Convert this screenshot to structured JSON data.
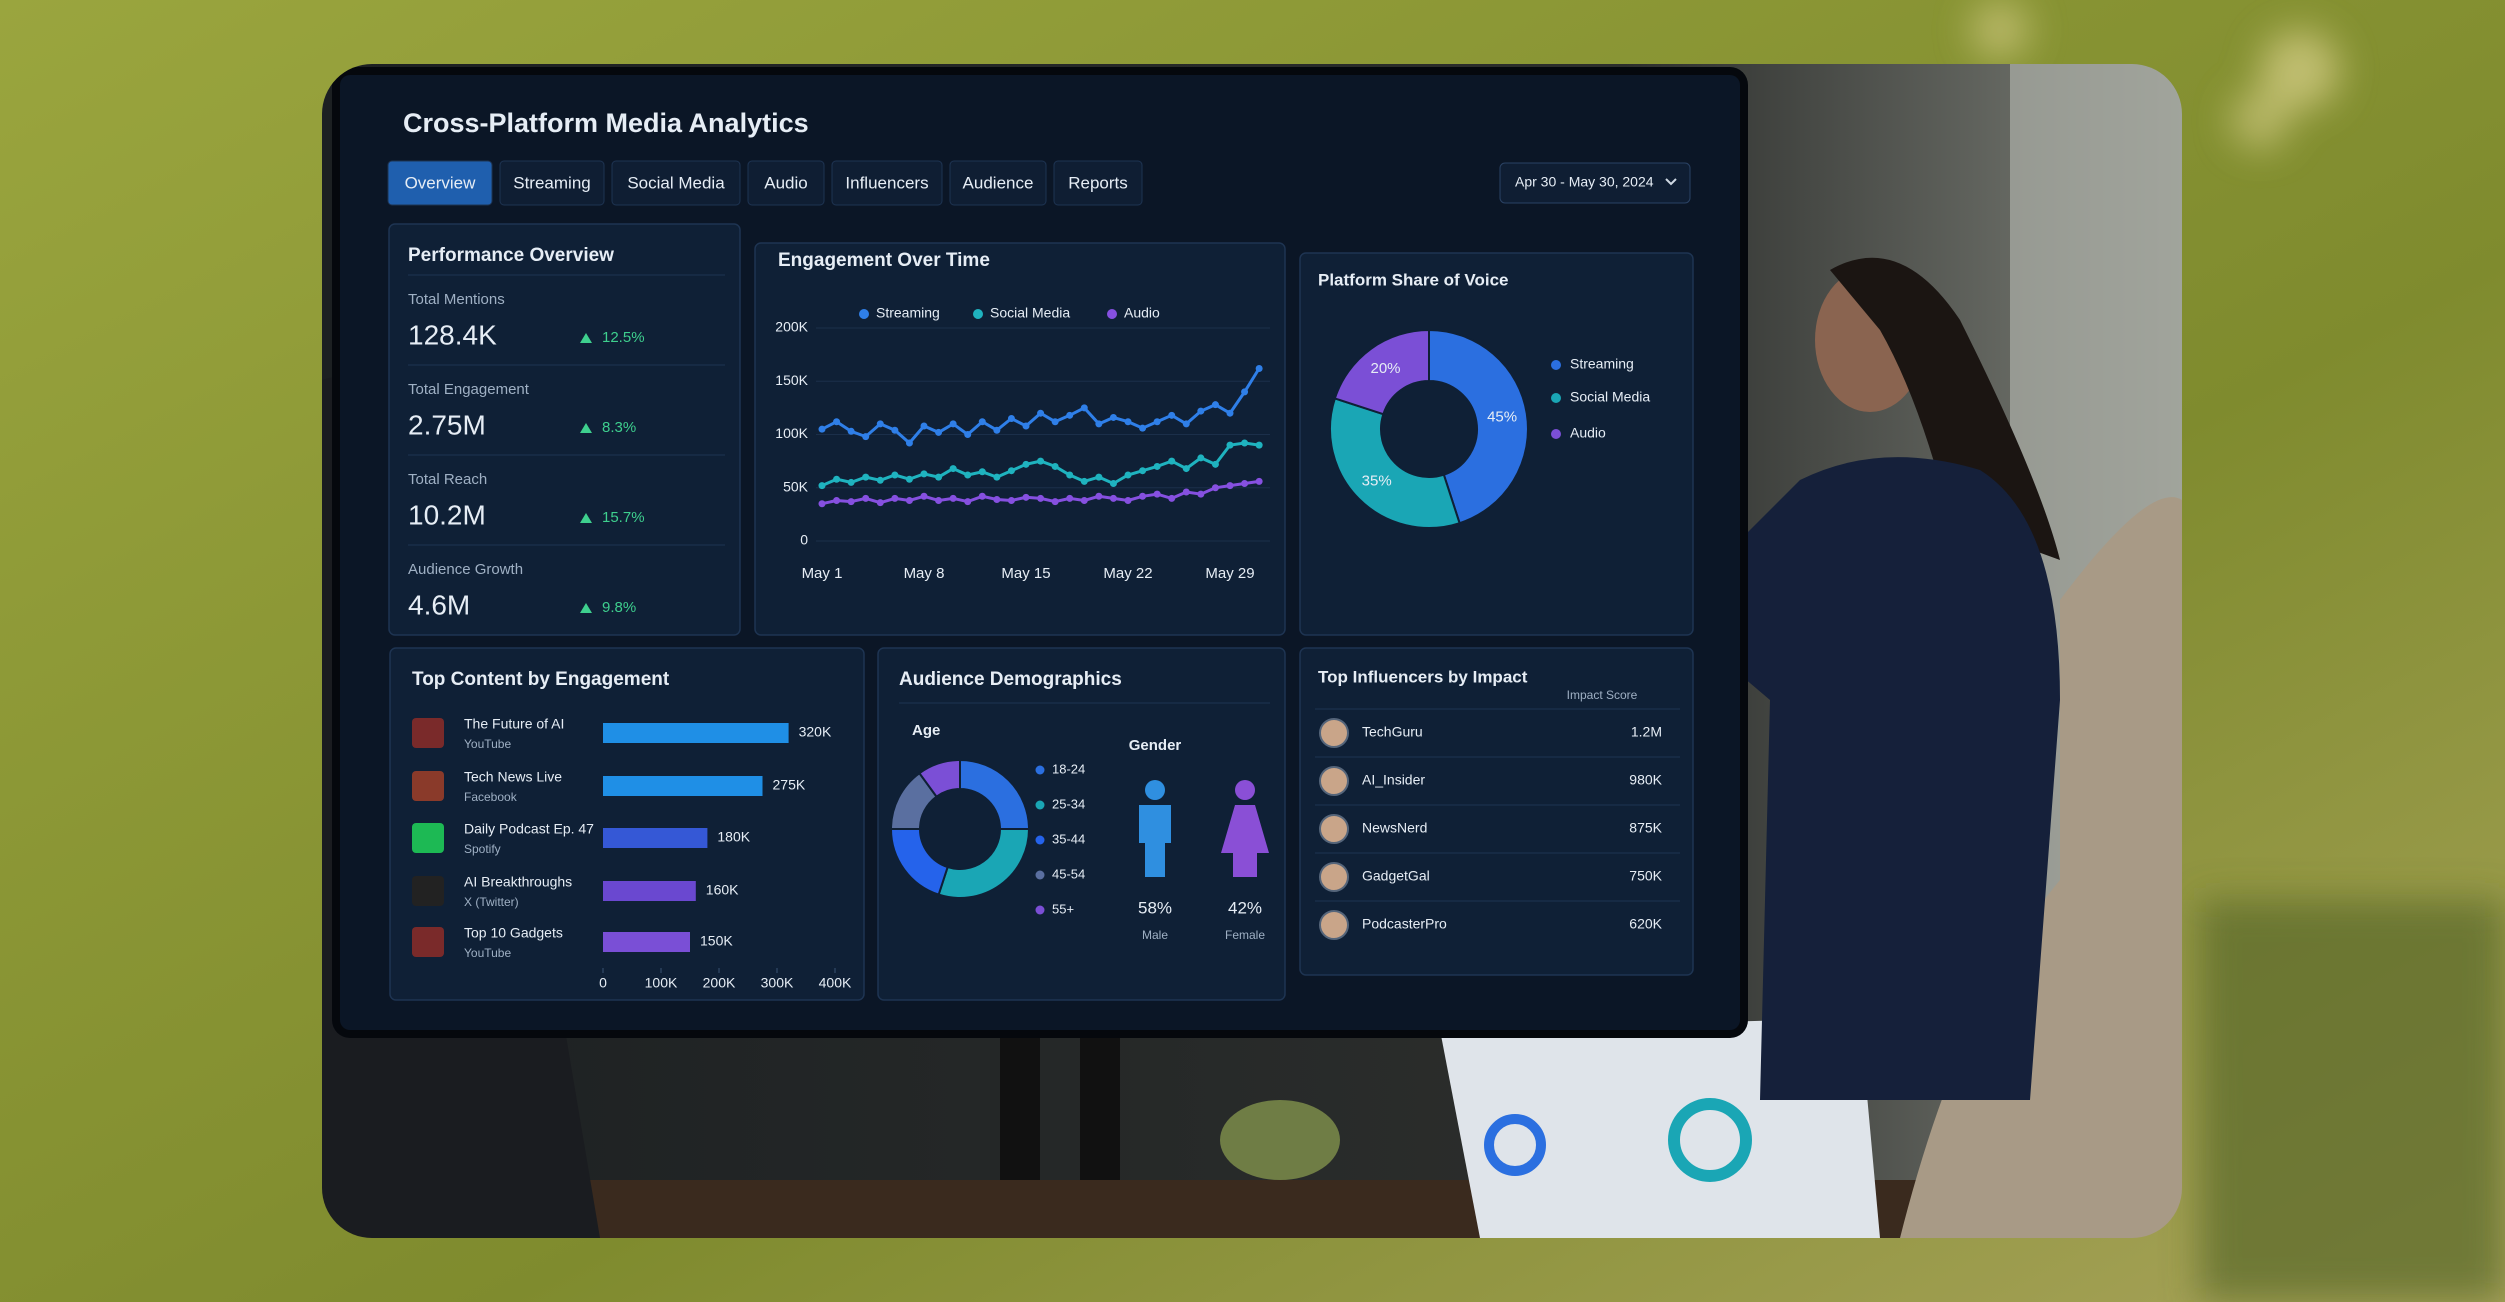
{
  "header": {
    "title": "Cross-Platform Media Analytics",
    "tabs": [
      "Overview",
      "Streaming",
      "Social Media",
      "Audio",
      "Influencers",
      "Audience",
      "Reports"
    ],
    "date_range": "Apr 30 - May 30, 2024"
  },
  "kpis": {
    "title": "Performance Overview",
    "items": [
      {
        "label": "Total Mentions",
        "value": "128.4K",
        "change": "12.5%"
      },
      {
        "label": "Total Engagement",
        "value": "2.75M",
        "change": "8.3%"
      },
      {
        "label": "Total Reach",
        "value": "10.2M",
        "change": "15.7%"
      },
      {
        "label": "Audience Growth",
        "value": "4.6M",
        "change": "9.8%"
      }
    ]
  },
  "chart_data": [
    {
      "type": "line",
      "title": "Engagement Over Time",
      "categories": [
        "May 1",
        null,
        null,
        null,
        null,
        null,
        null,
        "May 8",
        null,
        null,
        null,
        null,
        null,
        null,
        "May 15",
        null,
        null,
        null,
        null,
        null,
        null,
        "May 22",
        null,
        null,
        null,
        null,
        null,
        null,
        "May 29",
        null,
        null
      ],
      "series": [
        {
          "name": "Streaming",
          "color": "#2f7fe8",
          "values": [
            105000,
            112000,
            103000,
            98000,
            110000,
            104000,
            92000,
            108000,
            102000,
            110000,
            100000,
            112000,
            104000,
            115000,
            108000,
            120000,
            112000,
            118000,
            125000,
            110000,
            116000,
            112000,
            106000,
            112000,
            118000,
            110000,
            122000,
            128000,
            120000,
            140000,
            162000
          ]
        },
        {
          "name": "Social Media",
          "color": "#1fb3bf",
          "values": [
            52000,
            58000,
            55000,
            60000,
            57000,
            62000,
            58000,
            63000,
            60000,
            68000,
            62000,
            65000,
            60000,
            66000,
            72000,
            75000,
            70000,
            62000,
            56000,
            60000,
            54000,
            62000,
            66000,
            70000,
            75000,
            68000,
            78000,
            72000,
            90000,
            92000,
            90000
          ]
        },
        {
          "name": "Audio",
          "color": "#8650e0",
          "values": [
            35000,
            38000,
            37000,
            40000,
            36000,
            40000,
            38000,
            42000,
            38000,
            40000,
            37000,
            42000,
            39000,
            38000,
            41000,
            40000,
            37000,
            40000,
            38000,
            42000,
            40000,
            38000,
            42000,
            44000,
            40000,
            46000,
            44000,
            50000,
            52000,
            54000,
            56000
          ]
        }
      ],
      "ylim": [
        0,
        200000
      ],
      "yticks": [
        0,
        {
          "value": 50000,
          "label": "50K"
        },
        {
          "value": 100000,
          "label": "100K"
        },
        {
          "value": 150000,
          "label": "150K"
        },
        {
          "value": 200000,
          "label": "200K"
        }
      ],
      "grid": true
    },
    {
      "type": "pie",
      "title": "Platform Share of Voice",
      "categories": [
        "Streaming",
        "Social Media",
        "Audio"
      ],
      "values": [
        45,
        35,
        20
      ],
      "value_labels": [
        "45%",
        "35%",
        "20%"
      ],
      "colors": [
        "#2b6fe0",
        "#1aa6b5",
        "#7b4fd6"
      ],
      "donut": true
    },
    {
      "type": "hbar",
      "title": "Top Content by Engagement",
      "categories": [
        "The Future of AI",
        "Tech News Live",
        "Daily Podcast Ep. 47",
        "AI Breakthroughs",
        "Top 10 Gadgets"
      ],
      "platforms": [
        "YouTube",
        "Facebook",
        "Spotify",
        "X (Twitter)",
        "YouTube"
      ],
      "values": [
        320000,
        275000,
        180000,
        160000,
        150000
      ],
      "value_labels": [
        "320K",
        "275K",
        "180K",
        "160K",
        "150K"
      ],
      "colors": [
        "#1f8fe6",
        "#1f8fe6",
        "#3558d6",
        "#6a48d0",
        "#7a4fd6"
      ],
      "xlim": [
        0,
        400000
      ],
      "xticks": [
        0,
        {
          "value": 100000,
          "label": "100K"
        },
        {
          "value": 200000,
          "label": "200K"
        },
        {
          "value": 300000,
          "label": "300K"
        },
        {
          "value": 400000,
          "label": "400K"
        }
      ]
    },
    {
      "type": "pie",
      "title": "Audience Demographics",
      "label": "Age",
      "categories": [
        "18-24",
        "25-34",
        "35-44",
        "45-54",
        "55+"
      ],
      "values": [
        25,
        30,
        20,
        15,
        10
      ],
      "colors": [
        "#2b6fe0",
        "#1aa6b5",
        "#2563eb",
        "#5a6fa0",
        "#7b4fd6"
      ],
      "donut": true
    },
    {
      "type": "pictogram",
      "title": "Gender",
      "categories": [
        "Male",
        "Female"
      ],
      "values": [
        58,
        42
      ],
      "value_labels": [
        "58%",
        "42%"
      ],
      "colors": [
        "#2f8fe0",
        "#8a4fd6"
      ]
    }
  ],
  "influencers": {
    "title": "Top Influencers by Impact",
    "column": "Impact Score",
    "rows": [
      [
        "TechGuru",
        "1.2M"
      ],
      [
        "AI_Insider",
        "980K"
      ],
      [
        "NewsNerd",
        "875K"
      ],
      [
        "GadgetGal",
        "750K"
      ],
      [
        "PodcasterPro",
        "620K"
      ]
    ]
  }
}
